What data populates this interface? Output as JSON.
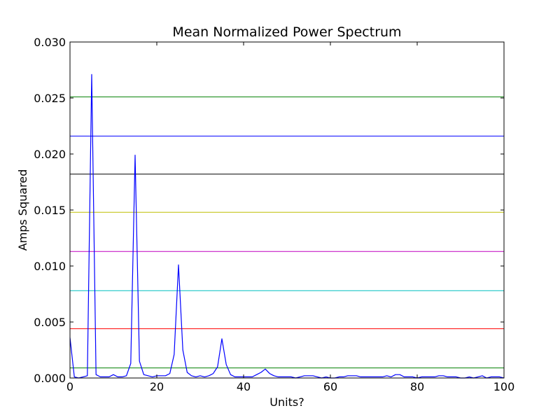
{
  "chart_data": {
    "type": "line",
    "title": "Mean Normalized Power Spectrum",
    "xlabel": "Units?",
    "ylabel": "Amps Squared",
    "xlim": [
      0,
      100
    ],
    "ylim": [
      0,
      0.03
    ],
    "xticks": [
      0,
      20,
      40,
      60,
      80,
      100
    ],
    "xtick_labels": [
      "0",
      "20",
      "40",
      "60",
      "80",
      "100"
    ],
    "yticks": [
      0,
      0.005,
      0.01,
      0.015,
      0.02,
      0.025,
      0.03
    ],
    "ytick_labels": [
      "0.000",
      "0.005",
      "0.010",
      "0.015",
      "0.020",
      "0.025",
      "0.030"
    ],
    "grid": false,
    "series": [
      {
        "color": "#0000ff",
        "x": [
          0,
          1,
          2,
          3,
          4,
          5,
          6,
          7,
          8,
          9,
          10,
          11,
          12,
          13,
          14,
          15,
          16,
          17,
          18,
          19,
          20,
          21,
          22,
          23,
          24,
          25,
          26,
          27,
          28,
          29,
          30,
          31,
          32,
          33,
          34,
          35,
          36,
          37,
          38,
          39,
          40,
          41,
          42,
          43,
          44,
          45,
          46,
          47,
          48,
          49,
          50,
          51,
          52,
          53,
          54,
          55,
          56,
          57,
          58,
          59,
          60,
          61,
          62,
          63,
          64,
          65,
          66,
          67,
          68,
          69,
          70,
          71,
          72,
          73,
          74,
          75,
          76,
          77,
          78,
          79,
          80,
          81,
          82,
          83,
          84,
          85,
          86,
          87,
          88,
          89,
          90,
          91,
          92,
          93,
          94,
          95,
          96,
          97,
          98,
          99,
          100
        ],
        "y": [
          0.0036,
          0.0001,
          0.0,
          0.0001,
          0.0002,
          0.0271,
          0.0003,
          0.0001,
          0.0001,
          0.0001,
          0.0003,
          0.0001,
          0.0001,
          0.0002,
          0.0013,
          0.0199,
          0.0015,
          0.0003,
          0.0002,
          0.0001,
          0.0002,
          0.0002,
          0.0002,
          0.0004,
          0.0021,
          0.0101,
          0.0025,
          0.0005,
          0.0002,
          0.0001,
          0.0002,
          0.0001,
          0.0002,
          0.0004,
          0.001,
          0.0035,
          0.0012,
          0.0003,
          0.0001,
          0.0001,
          0.0001,
          0.0001,
          0.0001,
          0.0003,
          0.0005,
          0.0008,
          0.0004,
          0.0002,
          0.0001,
          0.0001,
          0.0001,
          0.0001,
          0.0,
          0.0001,
          0.0002,
          0.0002,
          0.0002,
          0.0001,
          0.0,
          0.0001,
          0.0,
          0.0,
          0.0001,
          0.0001,
          0.0002,
          0.0002,
          0.0002,
          0.0001,
          0.0001,
          0.0001,
          0.0001,
          0.0001,
          0.0001,
          0.0002,
          0.0001,
          0.0003,
          0.0003,
          0.0001,
          0.0001,
          0.0001,
          0.0,
          0.0001,
          0.0001,
          0.0001,
          0.0001,
          0.0002,
          0.0002,
          0.0001,
          0.0001,
          0.0001,
          0.0,
          0.0,
          0.0001,
          0.0,
          0.0001,
          0.0002,
          0.0,
          0.0001,
          0.0001,
          0.0001,
          0.0
        ]
      }
    ],
    "hlines": [
      {
        "y": 0.0251,
        "color": "#008000"
      },
      {
        "y": 0.0216,
        "color": "#0000ff"
      },
      {
        "y": 0.0182,
        "color": "#000000"
      },
      {
        "y": 0.0148,
        "color": "#bfbf00"
      },
      {
        "y": 0.0113,
        "color": "#bf00bf"
      },
      {
        "y": 0.0078,
        "color": "#00bfbf"
      },
      {
        "y": 0.0044,
        "color": "#ff0000"
      },
      {
        "y": 0.0009,
        "color": "#008000"
      }
    ]
  }
}
